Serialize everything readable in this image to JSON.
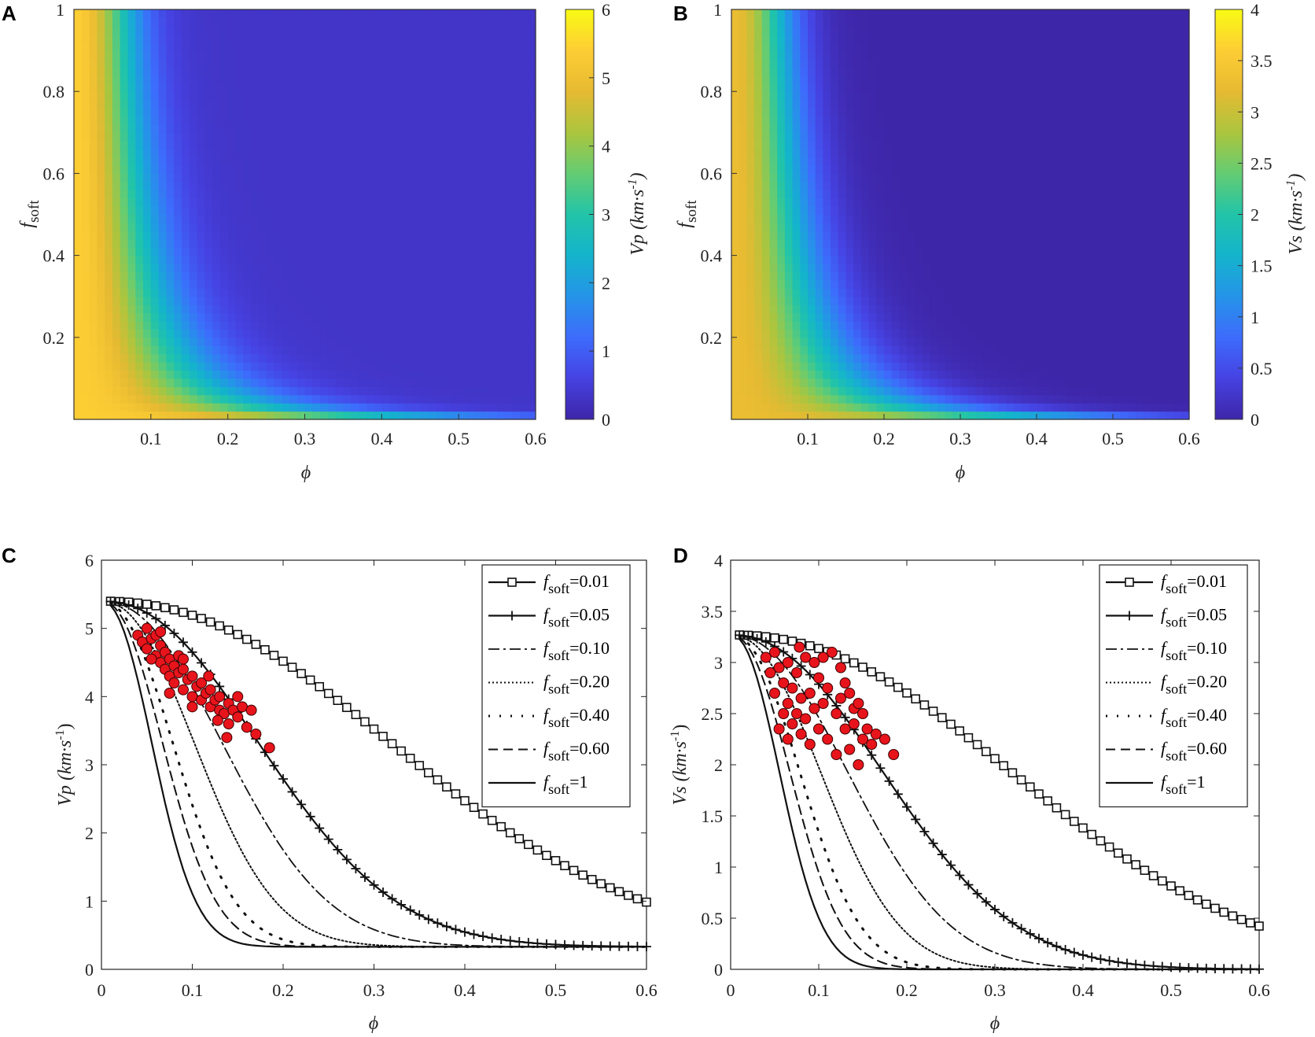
{
  "chart_data": [
    {
      "panel": "A",
      "type": "heatmap",
      "xlabel": "ϕ",
      "ylabel_main": "f",
      "ylabel_sub": "soft",
      "xlim": [
        0,
        0.6
      ],
      "ylim": [
        0,
        1
      ],
      "xticks": [
        "0.1",
        "0.2",
        "0.3",
        "0.4",
        "0.5",
        "0.6"
      ],
      "yticks": [
        "0.2",
        "0.4",
        "0.6",
        "0.8",
        "1"
      ],
      "colorbar": {
        "label": "Vp (km·s",
        "label_sup": "-1",
        "label_close": ")",
        "min": 0,
        "max": 6,
        "ticks": [
          "0",
          "1",
          "2",
          "3",
          "4",
          "5",
          "6"
        ]
      },
      "surface": {
        "v_max": 5.4,
        "v_min": 0.33
      }
    },
    {
      "panel": "B",
      "type": "heatmap",
      "xlabel": "ϕ",
      "ylabel_main": "f",
      "ylabel_sub": "soft",
      "xlim": [
        0,
        0.6
      ],
      "ylim": [
        0,
        1
      ],
      "xticks": [
        "0.1",
        "0.2",
        "0.3",
        "0.4",
        "0.5",
        "0.6"
      ],
      "yticks": [
        "0.2",
        "0.4",
        "0.6",
        "0.8",
        "1"
      ],
      "colorbar": {
        "label": "Vs (km·s",
        "label_sup": "-1",
        "label_close": ")",
        "min": 0,
        "max": 4,
        "ticks": [
          "0",
          "0.5",
          "1",
          "1.5",
          "2",
          "2.5",
          "3",
          "3.5",
          "4"
        ]
      },
      "surface": {
        "v_max": 3.27,
        "v_min": 0.0
      }
    },
    {
      "panel": "C",
      "type": "line",
      "xlabel": "ϕ",
      "ylabel": "Vp (km·s",
      "ylabel_sup": "-1",
      "ylabel_close": ")",
      "xlim": [
        0,
        0.6
      ],
      "ylim": [
        0,
        6
      ],
      "xticks": [
        "0",
        "0.1",
        "0.2",
        "0.3",
        "0.4",
        "0.5",
        "0.6"
      ],
      "yticks": [
        "0",
        "1",
        "2",
        "3",
        "4",
        "5",
        "6"
      ],
      "model": {
        "v_max": 5.4,
        "v_min": 0.33
      },
      "series": [
        {
          "name": "fsoft=0.01",
          "legend_main": "f",
          "legend_sub": "soft",
          "legend_val": "=0.01",
          "marker": "square",
          "f": 0.01
        },
        {
          "name": "fsoft=0.05",
          "legend_main": "f",
          "legend_sub": "soft",
          "legend_val": "=0.05",
          "marker": "plus",
          "f": 0.05
        },
        {
          "name": "fsoft=0.10",
          "legend_main": "f",
          "legend_sub": "soft",
          "legend_val": "=0.10",
          "marker": "dashdot",
          "f": 0.1
        },
        {
          "name": "fsoft=0.20",
          "legend_main": "f",
          "legend_sub": "soft",
          "legend_val": "=0.20",
          "marker": "dotted",
          "f": 0.2
        },
        {
          "name": "fsoft=0.40",
          "legend_main": "f",
          "legend_sub": "soft",
          "legend_val": "=0.40",
          "marker": "point",
          "f": 0.4
        },
        {
          "name": "fsoft=0.60",
          "legend_main": "f",
          "legend_sub": "soft",
          "legend_val": "=0.60",
          "marker": "dashed",
          "f": 0.6
        },
        {
          "name": "fsoft=1",
          "legend_main": "f",
          "legend_sub": "soft",
          "legend_val": "=1",
          "marker": "solid",
          "f": 1.0
        }
      ],
      "scatter": {
        "color": "#e8141c",
        "points": [
          [
            0.04,
            4.9
          ],
          [
            0.045,
            4.8
          ],
          [
            0.05,
            5.0
          ],
          [
            0.05,
            4.7
          ],
          [
            0.055,
            4.85
          ],
          [
            0.06,
            4.6
          ],
          [
            0.06,
            4.9
          ],
          [
            0.065,
            4.5
          ],
          [
            0.065,
            4.75
          ],
          [
            0.07,
            4.4
          ],
          [
            0.07,
            4.65
          ],
          [
            0.075,
            4.55
          ],
          [
            0.075,
            4.3
          ],
          [
            0.08,
            4.45
          ],
          [
            0.08,
            4.2
          ],
          [
            0.085,
            4.6
          ],
          [
            0.085,
            4.35
          ],
          [
            0.09,
            4.1
          ],
          [
            0.09,
            4.4
          ],
          [
            0.095,
            4.25
          ],
          [
            0.1,
            4.0
          ],
          [
            0.1,
            4.3
          ],
          [
            0.105,
            4.15
          ],
          [
            0.11,
            3.95
          ],
          [
            0.11,
            4.2
          ],
          [
            0.115,
            4.05
          ],
          [
            0.12,
            3.85
          ],
          [
            0.12,
            4.1
          ],
          [
            0.125,
            3.95
          ],
          [
            0.13,
            3.8
          ],
          [
            0.13,
            4.0
          ],
          [
            0.135,
            3.75
          ],
          [
            0.14,
            3.9
          ],
          [
            0.14,
            3.6
          ],
          [
            0.145,
            3.8
          ],
          [
            0.15,
            3.7
          ],
          [
            0.15,
            4.0
          ],
          [
            0.155,
            3.85
          ],
          [
            0.16,
            3.55
          ],
          [
            0.165,
            3.8
          ],
          [
            0.138,
            3.4
          ],
          [
            0.17,
            3.45
          ],
          [
            0.185,
            3.25
          ],
          [
            0.055,
            4.55
          ],
          [
            0.065,
            4.95
          ],
          [
            0.075,
            4.05
          ],
          [
            0.09,
            4.55
          ],
          [
            0.1,
            3.85
          ],
          [
            0.118,
            4.3
          ],
          [
            0.128,
            3.65
          ]
        ]
      }
    },
    {
      "panel": "D",
      "type": "line",
      "xlabel": "ϕ",
      "ylabel": "Vs (km·s",
      "ylabel_sup": "-1",
      "ylabel_close": ")",
      "xlim": [
        0,
        0.6
      ],
      "ylim": [
        0,
        4
      ],
      "xticks": [
        "0",
        "0.1",
        "0.2",
        "0.3",
        "0.4",
        "0.5",
        "0.6"
      ],
      "yticks": [
        "0",
        "0.5",
        "1",
        "1.5",
        "2",
        "2.5",
        "3",
        "3.5",
        "4"
      ],
      "model": {
        "v_max": 3.27,
        "v_min": 0.0
      },
      "series": [
        {
          "name": "fsoft=0.01",
          "legend_main": "f",
          "legend_sub": "soft",
          "legend_val": "=0.01",
          "marker": "square",
          "f": 0.01
        },
        {
          "name": "fsoft=0.05",
          "legend_main": "f",
          "legend_sub": "soft",
          "legend_val": "=0.05",
          "marker": "plus",
          "f": 0.05
        },
        {
          "name": "fsoft=0.10",
          "legend_main": "f",
          "legend_sub": "soft",
          "legend_val": "=0.10",
          "marker": "dashdot",
          "f": 0.1
        },
        {
          "name": "fsoft=0.20",
          "legend_main": "f",
          "legend_sub": "soft",
          "legend_val": "=0.20",
          "marker": "dotted",
          "f": 0.2
        },
        {
          "name": "fsoft=0.40",
          "legend_main": "f",
          "legend_sub": "soft",
          "legend_val": "=0.40",
          "marker": "point",
          "f": 0.4
        },
        {
          "name": "fsoft=0.60",
          "legend_main": "f",
          "legend_sub": "soft",
          "legend_val": "=0.60",
          "marker": "dashed",
          "f": 0.6
        },
        {
          "name": "fsoft=1",
          "legend_main": "f",
          "legend_sub": "soft",
          "legend_val": "=1",
          "marker": "solid",
          "f": 1.0
        }
      ],
      "scatter": {
        "color": "#e8141c",
        "points": [
          [
            0.04,
            3.05
          ],
          [
            0.045,
            2.9
          ],
          [
            0.05,
            3.1
          ],
          [
            0.05,
            2.7
          ],
          [
            0.055,
            2.95
          ],
          [
            0.06,
            2.5
          ],
          [
            0.06,
            2.8
          ],
          [
            0.065,
            3.0
          ],
          [
            0.065,
            2.6
          ],
          [
            0.07,
            2.4
          ],
          [
            0.07,
            2.75
          ],
          [
            0.075,
            2.9
          ],
          [
            0.075,
            2.5
          ],
          [
            0.08,
            2.3
          ],
          [
            0.08,
            2.65
          ],
          [
            0.085,
            3.05
          ],
          [
            0.085,
            2.45
          ],
          [
            0.09,
            2.2
          ],
          [
            0.09,
            2.7
          ],
          [
            0.095,
            2.55
          ],
          [
            0.1,
            2.35
          ],
          [
            0.1,
            2.85
          ],
          [
            0.105,
            2.6
          ],
          [
            0.11,
            2.25
          ],
          [
            0.11,
            2.75
          ],
          [
            0.115,
            3.1
          ],
          [
            0.12,
            2.5
          ],
          [
            0.12,
            2.1
          ],
          [
            0.125,
            2.65
          ],
          [
            0.13,
            2.35
          ],
          [
            0.13,
            2.8
          ],
          [
            0.135,
            2.15
          ],
          [
            0.14,
            2.55
          ],
          [
            0.14,
            2.4
          ],
          [
            0.145,
            2.0
          ],
          [
            0.15,
            2.5
          ],
          [
            0.15,
            2.25
          ],
          [
            0.155,
            2.35
          ],
          [
            0.16,
            2.2
          ],
          [
            0.165,
            2.3
          ],
          [
            0.175,
            2.25
          ],
          [
            0.185,
            2.1
          ],
          [
            0.095,
            3.0
          ],
          [
            0.105,
            3.05
          ],
          [
            0.055,
            2.35
          ],
          [
            0.065,
            2.25
          ],
          [
            0.078,
            3.15
          ],
          [
            0.125,
            2.95
          ],
          [
            0.135,
            2.7
          ],
          [
            0.145,
            2.6
          ]
        ]
      }
    }
  ]
}
